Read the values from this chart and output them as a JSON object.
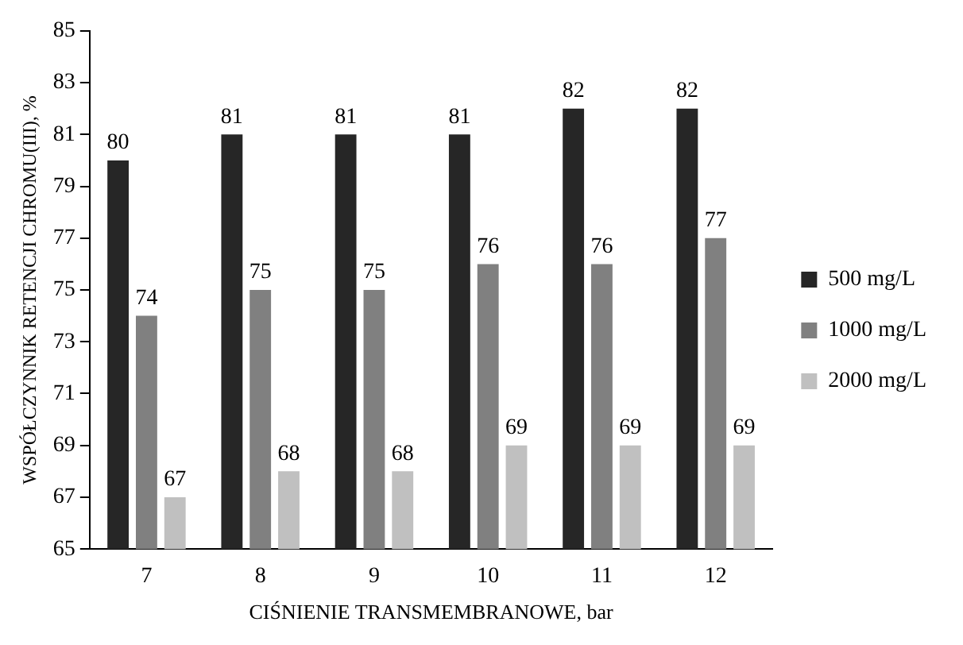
{
  "chart_data": {
    "type": "bar",
    "xlabel": "CIŚNIENIE TRANSMEMBRANOWE, bar",
    "ylabel": "WSPÓŁCZYNNIK RETENCJI CHROMU(III), %",
    "categories": [
      "7",
      "8",
      "9",
      "10",
      "11",
      "12"
    ],
    "series": [
      {
        "name": "500 mg/L",
        "color": "#262626",
        "values": [
          80,
          81,
          81,
          81,
          82,
          82
        ]
      },
      {
        "name": "1000 mg/L",
        "color": "#808080",
        "values": [
          74,
          75,
          75,
          76,
          76,
          77
        ]
      },
      {
        "name": "2000 mg/L",
        "color": "#c0c0c0",
        "values": [
          67,
          68,
          68,
          69,
          69,
          69
        ]
      }
    ],
    "ylim": [
      65,
      85
    ],
    "yticks": [
      65,
      67,
      69,
      71,
      73,
      75,
      77,
      79,
      81,
      83,
      85
    ],
    "data_labels": true,
    "legend": "right",
    "grid": false
  }
}
